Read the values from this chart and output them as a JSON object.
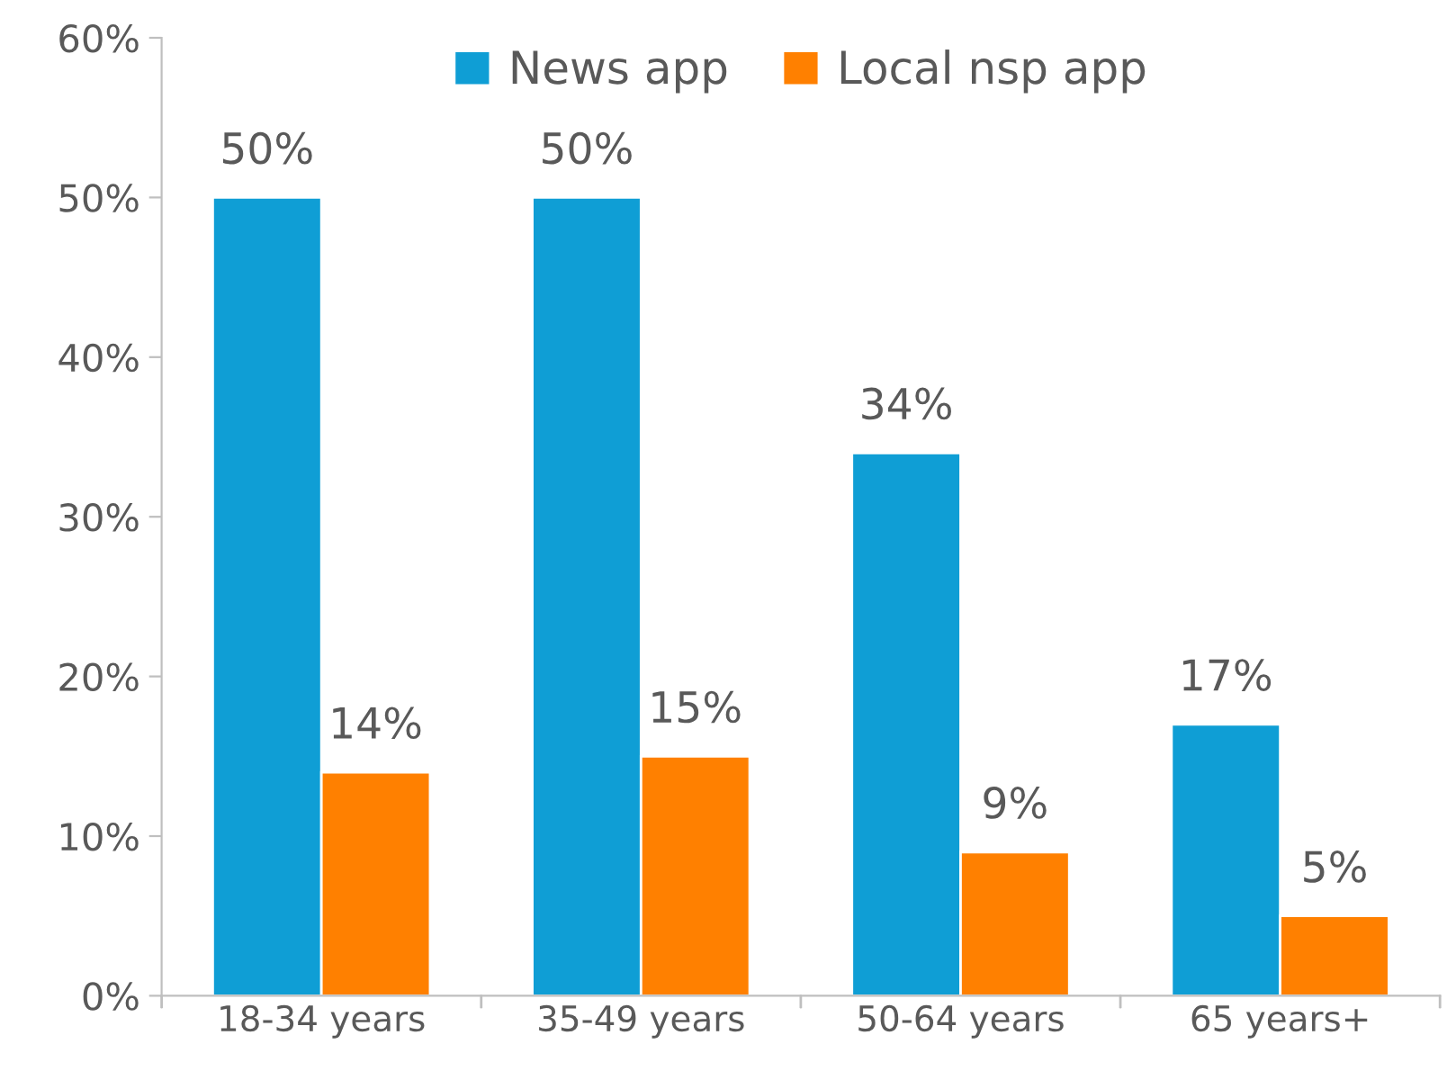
{
  "chart_data": {
    "type": "bar",
    "categories": [
      "18-34 years",
      "35-49 years",
      "50-64 years",
      "65 years+"
    ],
    "series": [
      {
        "name": "News app",
        "color": "#0f9ed5",
        "values": [
          50,
          50,
          34,
          17
        ],
        "value_labels": [
          "50%",
          "50%",
          "34%",
          "17%"
        ]
      },
      {
        "name": "Local nsp app",
        "color": "#ff8000",
        "values": [
          14,
          15,
          9,
          5
        ],
        "value_labels": [
          "14%",
          "15%",
          "9%",
          "5%"
        ]
      }
    ],
    "ylim": [
      0,
      60
    ],
    "yticks": [
      {
        "value": 0,
        "label": "0%"
      },
      {
        "value": 10,
        "label": "10%"
      },
      {
        "value": 20,
        "label": "20%"
      },
      {
        "value": 30,
        "label": "30%"
      },
      {
        "value": 40,
        "label": "40%"
      },
      {
        "value": 50,
        "label": "50%"
      },
      {
        "value": 60,
        "label": "60%"
      }
    ],
    "grid": false,
    "legend": "top"
  }
}
